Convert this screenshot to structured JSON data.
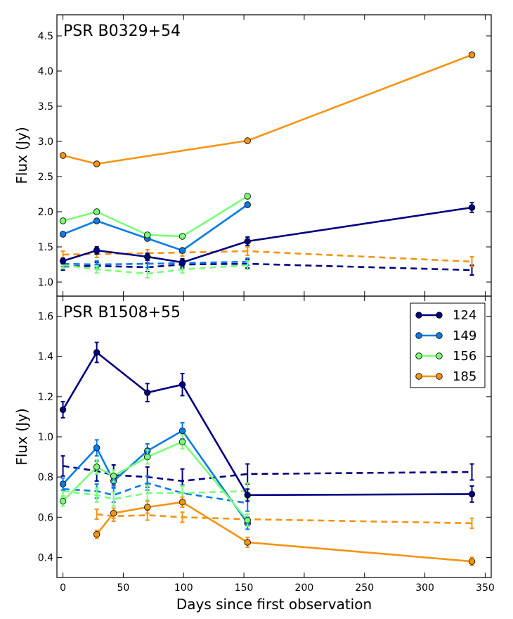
{
  "figure": {
    "xlabel": "Days since first observation",
    "xticks": [
      "0",
      "50",
      "100",
      "150",
      "200",
      "250",
      "300",
      "350"
    ]
  },
  "chart_data": [
    {
      "type": "line",
      "title": "PSR B0329+54",
      "xlabel": "Days since first observation",
      "ylabel": "Flux (Jy)",
      "xlim": [
        -5,
        355
      ],
      "ylim": [
        0.8,
        4.8
      ],
      "yticks": [
        "1.0",
        "1.5",
        "2.0",
        "2.5",
        "3.0",
        "3.5",
        "4.0",
        "4.5"
      ],
      "grid": false,
      "series": [
        {
          "name": "124",
          "style": "solid",
          "color": "#000080",
          "x": [
            0,
            28,
            70,
            99,
            153,
            339
          ],
          "y": [
            1.3,
            1.45,
            1.36,
            1.28,
            1.58,
            2.06
          ],
          "err": [
            0.04,
            0.05,
            0.05,
            0.05,
            0.06,
            0.07
          ]
        },
        {
          "name": "149",
          "style": "solid",
          "color": "#0a7ce6",
          "x": [
            0,
            28,
            70,
            99,
            153
          ],
          "y": [
            1.68,
            1.87,
            1.62,
            1.45,
            2.1
          ],
          "err": [
            0.02,
            0.02,
            0.02,
            0.02,
            0.03
          ]
        },
        {
          "name": "156",
          "style": "solid",
          "color": "#77ff77",
          "x": [
            0,
            28,
            70,
            99,
            153
          ],
          "y": [
            1.87,
            2.0,
            1.67,
            1.65,
            2.22
          ],
          "err": [
            0.02,
            0.02,
            0.02,
            0.02,
            0.02
          ]
        },
        {
          "name": "185",
          "style": "solid",
          "color": "#f59311",
          "x": [
            0,
            28,
            153,
            339
          ],
          "y": [
            2.8,
            2.68,
            3.01,
            4.23
          ],
          "err": [
            0.02,
            0.02,
            0.02,
            0.02
          ]
        },
        {
          "name": "124",
          "style": "dashed",
          "color": "#000080",
          "x": [
            0,
            28,
            70,
            99,
            153,
            339
          ],
          "y": [
            1.22,
            1.23,
            1.21,
            1.25,
            1.26,
            1.17
          ],
          "err": [
            0.05,
            0.05,
            0.06,
            0.05,
            0.06,
            0.07
          ]
        },
        {
          "name": "149",
          "style": "dashed",
          "color": "#0a7ce6",
          "x": [
            0,
            28,
            70,
            99,
            153
          ],
          "y": [
            1.26,
            1.25,
            1.26,
            1.27,
            1.29
          ],
          "err": [
            0.04,
            0.05,
            0.05,
            0.05,
            0.05
          ]
        },
        {
          "name": "156",
          "style": "dashed",
          "color": "#77ff77",
          "x": [
            0,
            28,
            70,
            99,
            153
          ],
          "y": [
            1.24,
            1.18,
            1.12,
            1.18,
            1.24
          ],
          "err": [
            0.05,
            0.05,
            0.06,
            0.05,
            0.06
          ]
        },
        {
          "name": "185",
          "style": "dashed",
          "color": "#f59311",
          "x": [
            0,
            28,
            70,
            99,
            153,
            339
          ],
          "y": [
            1.39,
            1.4,
            1.41,
            1.42,
            1.44,
            1.29
          ],
          "err": [
            0.05,
            0.05,
            0.05,
            0.05,
            0.06,
            0.07
          ]
        }
      ]
    },
    {
      "type": "line",
      "title": "PSR B1508+55",
      "xlabel": "Days since first observation",
      "ylabel": "Flux (Jy)",
      "xlim": [
        -5,
        355
      ],
      "ylim": [
        0.3,
        1.7
      ],
      "yticks": [
        "0.4",
        "0.6",
        "0.8",
        "1.0",
        "1.2",
        "1.4",
        "1.6"
      ],
      "grid": false,
      "legend": {
        "position": "top-right",
        "entries": [
          {
            "label": "124",
            "color": "#000080"
          },
          {
            "label": "149",
            "color": "#0a7ce6"
          },
          {
            "label": "156",
            "color": "#77ff77"
          },
          {
            "label": "185",
            "color": "#f59311"
          }
        ]
      },
      "series": [
        {
          "name": "124",
          "style": "solid",
          "color": "#000080",
          "x": [
            0,
            28,
            70,
            99,
            153,
            339
          ],
          "y": [
            1.135,
            1.42,
            1.22,
            1.26,
            0.71,
            0.715
          ],
          "err": [
            0.04,
            0.05,
            0.045,
            0.055,
            0.03,
            0.04
          ]
        },
        {
          "name": "149",
          "style": "solid",
          "color": "#0a7ce6",
          "x": [
            0,
            28,
            42,
            70,
            99,
            153
          ],
          "y": [
            0.765,
            0.945,
            0.78,
            0.93,
            1.03,
            0.57
          ],
          "err": [
            0.03,
            0.04,
            0.03,
            0.035,
            0.04,
            0.03
          ]
        },
        {
          "name": "156",
          "style": "solid",
          "color": "#77ff77",
          "x": [
            0,
            28,
            42,
            70,
            99,
            153
          ],
          "y": [
            0.68,
            0.85,
            0.805,
            0.9,
            0.975,
            0.585
          ],
          "err": [
            0.025,
            0.035,
            0.03,
            0.035,
            0.035,
            0.03
          ]
        },
        {
          "name": "185",
          "style": "solid",
          "color": "#f59311",
          "x": [
            28,
            42,
            70,
            99,
            153,
            339
          ],
          "y": [
            0.515,
            0.62,
            0.65,
            0.675,
            0.475,
            0.38
          ],
          "err": [
            0.02,
            0.025,
            0.03,
            0.025,
            0.025,
            0.02
          ]
        },
        {
          "name": "124",
          "style": "dashed",
          "color": "#000080",
          "x": [
            0,
            28,
            42,
            70,
            99,
            153,
            339
          ],
          "y": [
            0.855,
            0.83,
            0.81,
            0.8,
            0.78,
            0.815,
            0.825
          ],
          "err": [
            0.05,
            0.05,
            0.05,
            0.05,
            0.06,
            0.05,
            0.04
          ]
        },
        {
          "name": "149",
          "style": "dashed",
          "color": "#0a7ce6",
          "x": [
            0,
            28,
            42,
            70,
            99,
            153
          ],
          "y": [
            0.74,
            0.73,
            0.71,
            0.77,
            0.72,
            0.67
          ],
          "err": [
            0.035,
            0.035,
            0.035,
            0.035,
            0.04,
            0.04
          ]
        },
        {
          "name": "156",
          "style": "dashed",
          "color": "#77ff77",
          "x": [
            0,
            28,
            42,
            70,
            99,
            153
          ],
          "y": [
            0.73,
            0.71,
            0.69,
            0.72,
            0.72,
            0.73
          ],
          "err": [
            0.03,
            0.035,
            0.035,
            0.035,
            0.035,
            0.04
          ]
        },
        {
          "name": "185",
          "style": "dashed",
          "color": "#f59311",
          "x": [
            28,
            42,
            70,
            99,
            153,
            339
          ],
          "y": [
            0.615,
            0.605,
            0.61,
            0.6,
            0.59,
            0.57
          ],
          "err": [
            0.025,
            0.025,
            0.025,
            0.025,
            0.025,
            0.025
          ]
        }
      ]
    }
  ]
}
